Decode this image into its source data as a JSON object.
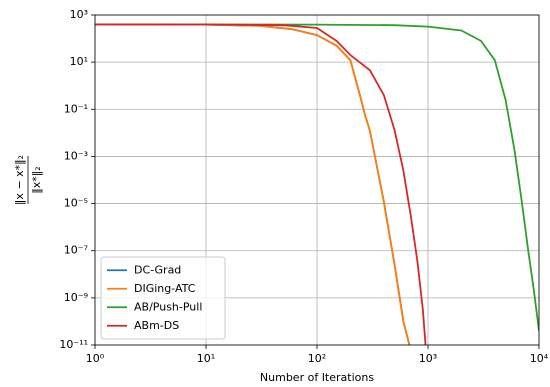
{
  "chart_data": {
    "type": "line",
    "xlabel": "Number of Iterations",
    "ylabel": {
      "numerator": "‖x − x*‖₂",
      "denominator": "‖x*‖₂"
    },
    "xscale": "log",
    "yscale": "log",
    "grid": true,
    "legend": "lower left",
    "xlim": [
      1,
      10000
    ],
    "ylim": [
      1e-11,
      1000
    ],
    "xticks": [
      {
        "value": 1,
        "label": "10⁰"
      },
      {
        "value": 10,
        "label": "10¹"
      },
      {
        "value": 100,
        "label": "10²"
      },
      {
        "value": 1000,
        "label": "10³"
      },
      {
        "value": 10000,
        "label": "10⁴"
      }
    ],
    "yticks": [
      {
        "value": 1e-11,
        "label": "10⁻¹¹"
      },
      {
        "value": 1e-09,
        "label": "10⁻⁹"
      },
      {
        "value": 1e-07,
        "label": "10⁻⁷"
      },
      {
        "value": 1e-05,
        "label": "10⁻⁵"
      },
      {
        "value": 0.001,
        "label": "10⁻³"
      },
      {
        "value": 0.1,
        "label": "10⁻¹"
      },
      {
        "value": 10,
        "label": "10¹"
      },
      {
        "value": 1000,
        "label": "10³"
      }
    ],
    "series": [
      {
        "name": "DC-Grad",
        "color": "#1f77b4",
        "x": [
          1,
          10,
          30,
          60,
          100,
          150,
          200,
          250,
          270,
          300,
          400,
          500,
          600,
          680
        ],
        "values": [
          400,
          390,
          350,
          250,
          140,
          50,
          12,
          0.25,
          0.06,
          0.012,
          1.2e-05,
          2.5e-08,
          1e-10,
          1e-11
        ]
      },
      {
        "name": "DIGing-ATC",
        "color": "#ff7f0e",
        "x": [
          1,
          10,
          30,
          60,
          100,
          150,
          200,
          250,
          270,
          300,
          400,
          500,
          600,
          680
        ],
        "values": [
          400,
          390,
          350,
          250,
          140,
          50,
          12,
          0.25,
          0.06,
          0.012,
          1.2e-05,
          2.5e-08,
          1e-10,
          1e-11
        ]
      },
      {
        "name": "AB/Push-Pull",
        "color": "#2ca02c",
        "x": [
          1,
          100,
          500,
          1000,
          2000,
          3000,
          4000,
          5000,
          6000,
          7000,
          8000,
          9000,
          10000
        ],
        "values": [
          400,
          390,
          370,
          320,
          220,
          80,
          12,
          0.25,
          0.002,
          1.2e-05,
          1e-07,
          2e-09,
          4e-11
        ]
      },
      {
        "name": "ABm-DS",
        "color": "#d62728",
        "x": [
          1,
          10,
          50,
          100,
          150,
          200,
          300,
          400,
          500,
          600,
          700,
          800,
          900,
          950
        ],
        "values": [
          400,
          395,
          370,
          280,
          80,
          20,
          4.5,
          0.4,
          0.013,
          0.00025,
          3e-06,
          4e-08,
          3e-10,
          1e-11
        ]
      }
    ]
  }
}
